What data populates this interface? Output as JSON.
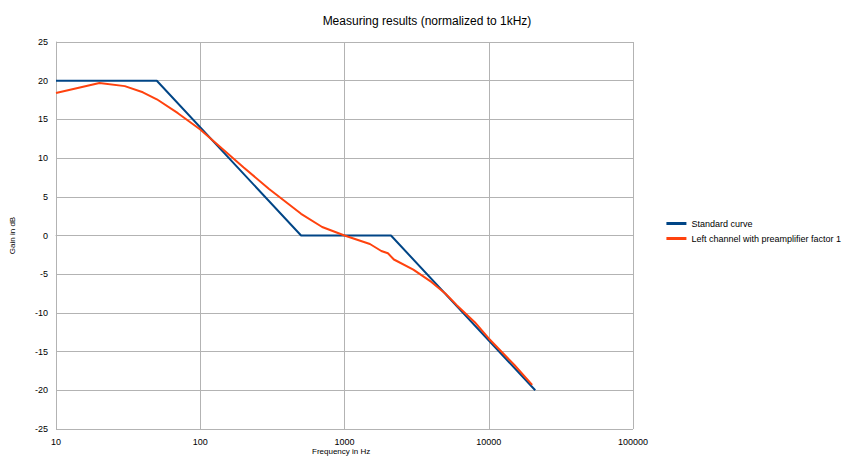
{
  "chart_data": {
    "type": "line",
    "title": "Measuring results (normalized to 1kHz)",
    "x_label": "Frequency in Hz",
    "y_label": "Gain in dB",
    "log": "x",
    "grid": true,
    "legend": "right",
    "xlim": [
      10,
      100000
    ],
    "xticks": [
      10,
      100,
      1000,
      10000,
      100000
    ],
    "ylim": [
      -25,
      25
    ],
    "yticks": [
      -25,
      -20,
      -15,
      -10,
      -5,
      0,
      5,
      10,
      15,
      20,
      25
    ],
    "series": [
      {
        "name": "Standard curve",
        "color": "#004586",
        "x": [
          10,
          50,
          500,
          2100,
          21000
        ],
        "values": [
          20,
          20,
          0,
          0,
          -20
        ]
      },
      {
        "name": "Left channel with preamplifier factor 1",
        "color": "#ff420e",
        "x": [
          10,
          20,
          30,
          40,
          50,
          70,
          100,
          200,
          300,
          500,
          700,
          1000,
          1500,
          1800,
          2000,
          2200,
          3000,
          4000,
          5000,
          6000,
          8000,
          10000,
          15000,
          20000
        ],
        "values": [
          18.4,
          19.7,
          19.3,
          18.5,
          17.6,
          15.8,
          13.7,
          8.8,
          6.0,
          2.8,
          1.1,
          0,
          -1.1,
          -2.0,
          -2.3,
          -3.1,
          -4.4,
          -6.0,
          -7.5,
          -9.0,
          -11.2,
          -13.3,
          -16.7,
          -19.3
        ]
      }
    ]
  }
}
